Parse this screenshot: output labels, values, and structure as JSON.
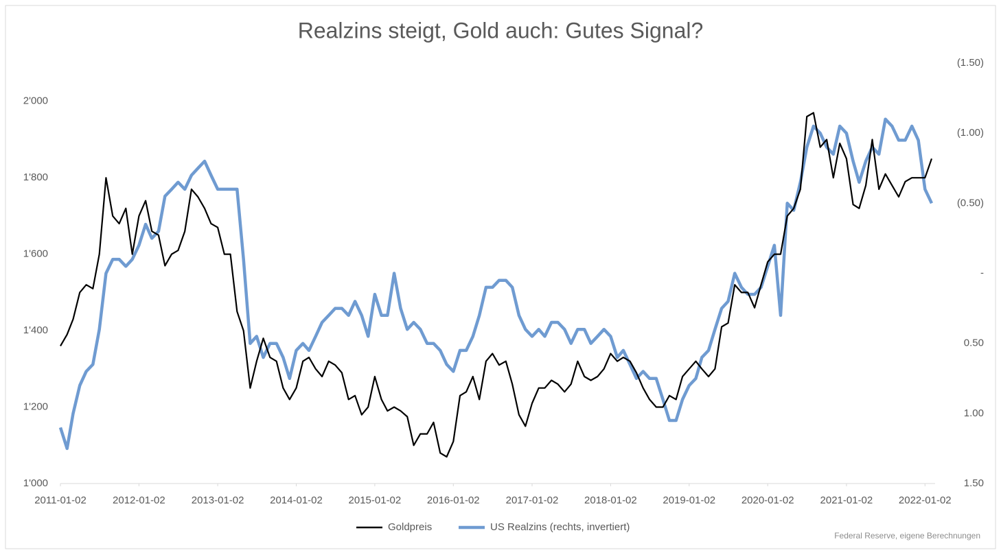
{
  "chart_data": {
    "type": "line",
    "title": "Realzins steigt, Gold auch: Gutes Signal?",
    "source": "Federal Reserve, eigene Berechnungen",
    "x": [
      "2011-01-02",
      "2011-02-02",
      "2011-03-02",
      "2011-04-02",
      "2011-05-02",
      "2011-06-02",
      "2011-07-02",
      "2011-08-02",
      "2011-09-02",
      "2011-10-02",
      "2011-11-02",
      "2011-12-02",
      "2012-01-02",
      "2012-02-02",
      "2012-03-02",
      "2012-04-02",
      "2012-05-02",
      "2012-06-02",
      "2012-07-02",
      "2012-08-02",
      "2012-09-02",
      "2012-10-02",
      "2012-11-02",
      "2012-12-02",
      "2013-01-02",
      "2013-02-02",
      "2013-03-02",
      "2013-04-02",
      "2013-05-02",
      "2013-06-02",
      "2013-07-02",
      "2013-08-02",
      "2013-09-02",
      "2013-10-02",
      "2013-11-02",
      "2013-12-02",
      "2014-01-02",
      "2014-02-02",
      "2014-03-02",
      "2014-04-02",
      "2014-05-02",
      "2014-06-02",
      "2014-07-02",
      "2014-08-02",
      "2014-09-02",
      "2014-10-02",
      "2014-11-02",
      "2014-12-02",
      "2015-01-02",
      "2015-02-02",
      "2015-03-02",
      "2015-04-02",
      "2015-05-02",
      "2015-06-02",
      "2015-07-02",
      "2015-08-02",
      "2015-09-02",
      "2015-10-02",
      "2015-11-02",
      "2015-12-02",
      "2016-01-02",
      "2016-02-02",
      "2016-03-02",
      "2016-04-02",
      "2016-05-02",
      "2016-06-02",
      "2016-07-02",
      "2016-08-02",
      "2016-09-02",
      "2016-10-02",
      "2016-11-02",
      "2016-12-02",
      "2017-01-02",
      "2017-02-02",
      "2017-03-02",
      "2017-04-02",
      "2017-05-02",
      "2017-06-02",
      "2017-07-02",
      "2017-08-02",
      "2017-09-02",
      "2017-10-02",
      "2017-11-02",
      "2017-12-02",
      "2018-01-02",
      "2018-02-02",
      "2018-03-02",
      "2018-04-02",
      "2018-05-02",
      "2018-06-02",
      "2018-07-02",
      "2018-08-02",
      "2018-09-02",
      "2018-10-02",
      "2018-11-02",
      "2018-12-02",
      "2019-01-02",
      "2019-02-02",
      "2019-03-02",
      "2019-04-02",
      "2019-05-02",
      "2019-06-02",
      "2019-07-02",
      "2019-08-02",
      "2019-09-02",
      "2019-10-02",
      "2019-11-02",
      "2019-12-02",
      "2020-01-02",
      "2020-02-02",
      "2020-03-02",
      "2020-04-02",
      "2020-05-02",
      "2020-06-02",
      "2020-07-02",
      "2020-08-02",
      "2020-09-02",
      "2020-10-02",
      "2020-11-02",
      "2020-12-02",
      "2021-01-02",
      "2021-02-02",
      "2021-03-02",
      "2021-04-02",
      "2021-05-02",
      "2021-06-02",
      "2021-07-02",
      "2021-08-02",
      "2021-09-02",
      "2021-10-02",
      "2021-11-02",
      "2021-12-02",
      "2022-01-02",
      "2022-02-02"
    ],
    "series": [
      {
        "name": "Goldpreis",
        "color": "#000000",
        "axis": "y",
        "values": [
          1360,
          1390,
          1430,
          1500,
          1520,
          1510,
          1600,
          1800,
          1700,
          1680,
          1720,
          1600,
          1700,
          1740,
          1660,
          1650,
          1570,
          1600,
          1610,
          1660,
          1770,
          1750,
          1720,
          1680,
          1670,
          1600,
          1600,
          1450,
          1400,
          1250,
          1320,
          1380,
          1330,
          1320,
          1250,
          1220,
          1250,
          1320,
          1330,
          1300,
          1280,
          1320,
          1310,
          1290,
          1220,
          1230,
          1180,
          1200,
          1280,
          1220,
          1190,
          1200,
          1190,
          1175,
          1100,
          1130,
          1130,
          1160,
          1080,
          1070,
          1110,
          1230,
          1240,
          1280,
          1220,
          1320,
          1340,
          1310,
          1320,
          1260,
          1180,
          1150,
          1210,
          1250,
          1250,
          1270,
          1260,
          1240,
          1260,
          1320,
          1280,
          1270,
          1280,
          1300,
          1340,
          1320,
          1330,
          1320,
          1290,
          1250,
          1220,
          1200,
          1200,
          1230,
          1220,
          1280,
          1300,
          1320,
          1300,
          1280,
          1300,
          1410,
          1420,
          1520,
          1500,
          1500,
          1460,
          1520,
          1580,
          1600,
          1600,
          1700,
          1720,
          1770,
          1960,
          1970,
          1880,
          1900,
          1800,
          1890,
          1850,
          1730,
          1720,
          1780,
          1900,
          1770,
          1810,
          1780,
          1750,
          1790,
          1800,
          1800,
          1800,
          1850
        ]
      },
      {
        "name": "US Realzins (rechts, invertiert)",
        "color": "#6f9bd1",
        "axis": "y2",
        "values": [
          1.1,
          1.25,
          1.0,
          0.8,
          0.7,
          0.65,
          0.4,
          0.0,
          -0.1,
          -0.1,
          -0.05,
          -0.1,
          -0.2,
          -0.35,
          -0.25,
          -0.3,
          -0.55,
          -0.6,
          -0.65,
          -0.6,
          -0.7,
          -0.75,
          -0.8,
          -0.7,
          -0.6,
          -0.6,
          -0.6,
          -0.6,
          -0.1,
          0.5,
          0.45,
          0.6,
          0.5,
          0.5,
          0.6,
          0.75,
          0.55,
          0.5,
          0.55,
          0.45,
          0.35,
          0.3,
          0.25,
          0.25,
          0.3,
          0.2,
          0.3,
          0.45,
          0.15,
          0.3,
          0.3,
          0.0,
          0.25,
          0.4,
          0.35,
          0.4,
          0.5,
          0.5,
          0.55,
          0.65,
          0.7,
          0.55,
          0.55,
          0.45,
          0.3,
          0.1,
          0.1,
          0.05,
          0.05,
          0.1,
          0.3,
          0.4,
          0.45,
          0.4,
          0.45,
          0.35,
          0.35,
          0.4,
          0.5,
          0.4,
          0.4,
          0.5,
          0.45,
          0.4,
          0.45,
          0.6,
          0.55,
          0.65,
          0.75,
          0.7,
          0.75,
          0.75,
          0.9,
          1.05,
          1.05,
          0.9,
          0.8,
          0.75,
          0.6,
          0.55,
          0.4,
          0.25,
          0.2,
          0.0,
          0.1,
          0.15,
          0.15,
          0.1,
          -0.05,
          -0.2,
          0.3,
          -0.5,
          -0.45,
          -0.65,
          -0.9,
          -1.05,
          -1.0,
          -0.9,
          -0.85,
          -1.05,
          -1.0,
          -0.8,
          -0.65,
          -0.8,
          -0.9,
          -0.85,
          -1.1,
          -1.05,
          -0.95,
          -0.95,
          -1.05,
          -0.95,
          -0.6,
          -0.5
        ]
      }
    ],
    "xlim": [
      "2011-01-02",
      "2022-02-02"
    ],
    "xticks": [
      "2011-01-02",
      "2012-01-02",
      "2013-01-02",
      "2014-01-02",
      "2015-01-02",
      "2016-01-02",
      "2017-01-02",
      "2018-01-02",
      "2019-01-02",
      "2020-01-02",
      "2021-01-02",
      "2022-01-02"
    ],
    "ylim": [
      1000,
      2100
    ],
    "yticks": [
      {
        "value": 1000,
        "label": "1'000"
      },
      {
        "value": 1200,
        "label": "1'200"
      },
      {
        "value": 1400,
        "label": "1'400"
      },
      {
        "value": 1600,
        "label": "1'600"
      },
      {
        "value": 1800,
        "label": "1'800"
      },
      {
        "value": 2000,
        "label": "2'000"
      }
    ],
    "y2lim": [
      -1.5,
      1.5
    ],
    "y2_inverted": true,
    "y2ticks": [
      {
        "value": -1.5,
        "label": "(1.50)"
      },
      {
        "value": -1,
        "label": "(1.00)"
      },
      {
        "value": -0.5,
        "label": "(0.50)"
      },
      {
        "value": 0,
        "label": "-"
      },
      {
        "value": 0.5,
        "label": "0.50"
      },
      {
        "value": 1,
        "label": "1.00"
      },
      {
        "value": 1.5,
        "label": "1.50"
      }
    ],
    "grid": false,
    "legend": "bottom"
  }
}
